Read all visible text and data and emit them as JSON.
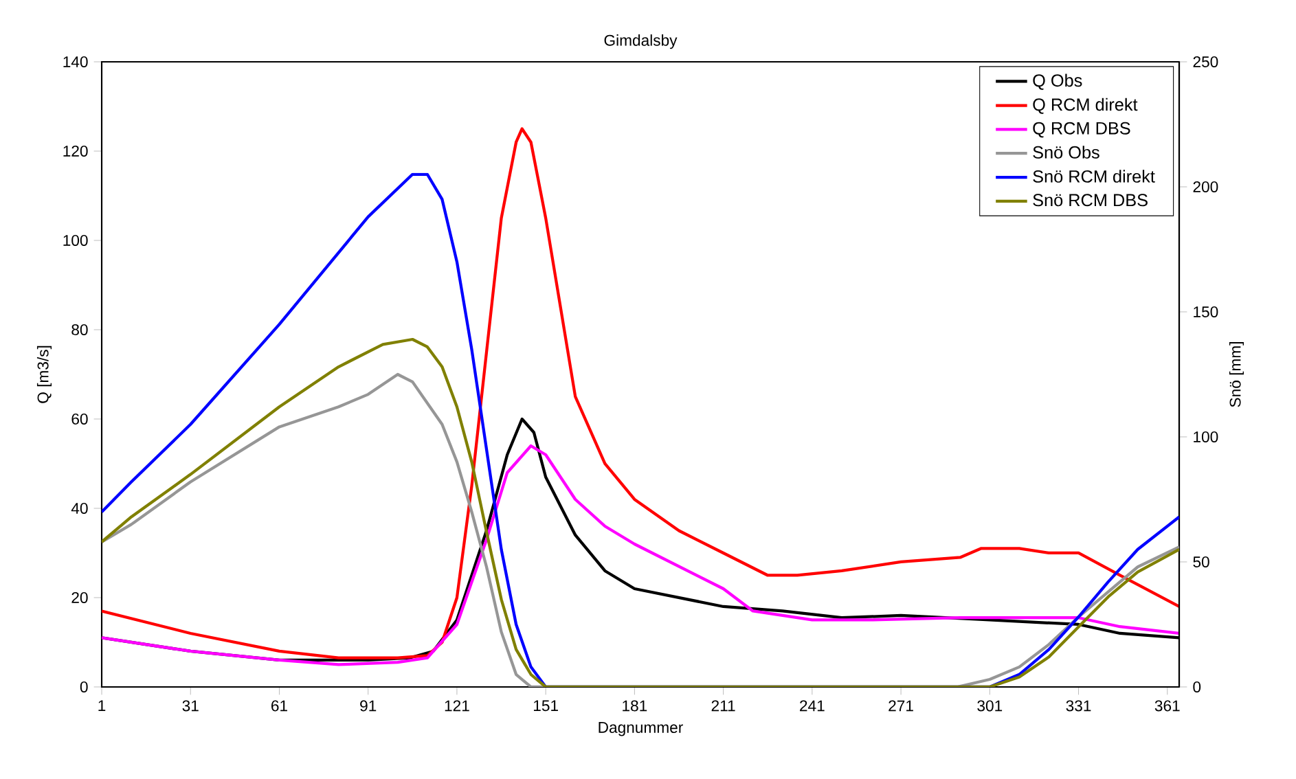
{
  "chart_data": {
    "type": "line",
    "title": "Gimdalsby",
    "xlabel": "Dagnummer",
    "ylabel": "Q [m3/s]",
    "y2label": "Snö [mm]",
    "xlim": [
      1,
      365
    ],
    "xticks": [
      1,
      31,
      61,
      91,
      121,
      151,
      181,
      211,
      241,
      271,
      301,
      331,
      361
    ],
    "ylim": [
      0,
      140
    ],
    "yticks": [
      0,
      20,
      40,
      60,
      80,
      100,
      120,
      140
    ],
    "y2lim": [
      0,
      250
    ],
    "y2ticks": [
      0,
      50,
      100,
      150,
      200,
      250
    ],
    "legend": "top right",
    "marker": "none",
    "line_style": "solid",
    "series": [
      {
        "name": "Q Obs",
        "color": "#000000",
        "x": [
          1,
          31,
          61,
          91,
          105,
          113,
          121,
          131,
          138,
          143,
          147,
          151,
          161,
          171,
          181,
          211,
          231,
          251,
          271,
          301,
          331,
          345,
          365
        ],
        "values": [
          11,
          8,
          6,
          6,
          6.5,
          8,
          15,
          35,
          52,
          60,
          57,
          47,
          34,
          26,
          22,
          18,
          17,
          15.5,
          16,
          15,
          14,
          12,
          11
        ]
      },
      {
        "name": "Q RCM direkt",
        "color": "#ff0000",
        "x": [
          1,
          31,
          61,
          81,
          101,
          111,
          116,
          121,
          126,
          131,
          136,
          141,
          143,
          146,
          151,
          156,
          161,
          171,
          181,
          196,
          211,
          226,
          236,
          251,
          271,
          291,
          298,
          311,
          321,
          331,
          345,
          365
        ],
        "values": [
          17,
          12,
          8,
          6.5,
          6.5,
          7,
          10,
          20,
          45,
          75,
          105,
          122,
          125,
          122,
          105,
          85,
          65,
          50,
          42,
          35,
          30,
          25,
          25,
          26,
          28,
          29,
          31,
          31,
          30,
          30,
          25,
          18
        ]
      },
      {
        "name": "Q RCM DBS",
        "color": "#ff00ff",
        "x": [
          1,
          31,
          61,
          81,
          101,
          111,
          121,
          131,
          138,
          146,
          151,
          161,
          171,
          181,
          211,
          221,
          241,
          261,
          291,
          331,
          345,
          365
        ],
        "values": [
          11,
          8,
          6,
          5,
          5.5,
          6.5,
          14,
          33,
          48,
          54,
          52,
          42,
          36,
          32,
          22,
          17,
          15,
          15,
          15.5,
          15.5,
          13.5,
          12
        ]
      },
      {
        "name": "Snö Obs",
        "color": "#969696",
        "axis": "y2",
        "x": [
          1,
          11,
          31,
          61,
          81,
          91,
          101,
          106,
          116,
          121,
          126,
          131,
          136,
          141,
          146,
          290,
          301,
          311,
          321,
          331,
          341,
          351,
          365
        ],
        "values": [
          58,
          65,
          82,
          104,
          112,
          117,
          125,
          122,
          105,
          90,
          70,
          48,
          22,
          5,
          0,
          0,
          3,
          8,
          17,
          28,
          38,
          48,
          56
        ]
      },
      {
        "name": "Snö RCM direkt",
        "color": "#0000ff",
        "axis": "y2",
        "x": [
          1,
          11,
          31,
          61,
          91,
          106,
          111,
          116,
          121,
          126,
          131,
          136,
          141,
          146,
          151,
          301,
          311,
          321,
          331,
          341,
          351,
          365
        ],
        "values": [
          70,
          82,
          105,
          145,
          188,
          205,
          205,
          195,
          170,
          135,
          95,
          55,
          25,
          8,
          0,
          0,
          5,
          15,
          28,
          42,
          55,
          68
        ]
      },
      {
        "name": "Snö RCM DBS",
        "color": "#808000",
        "axis": "y2",
        "x": [
          1,
          11,
          31,
          61,
          81,
          96,
          106,
          111,
          116,
          121,
          126,
          131,
          136,
          141,
          146,
          151,
          301,
          311,
          321,
          331,
          341,
          351,
          365
        ],
        "values": [
          58,
          68,
          85,
          112,
          128,
          137,
          139,
          136,
          128,
          112,
          90,
          62,
          35,
          15,
          5,
          0,
          0,
          4,
          12,
          24,
          36,
          46,
          55
        ]
      }
    ]
  }
}
